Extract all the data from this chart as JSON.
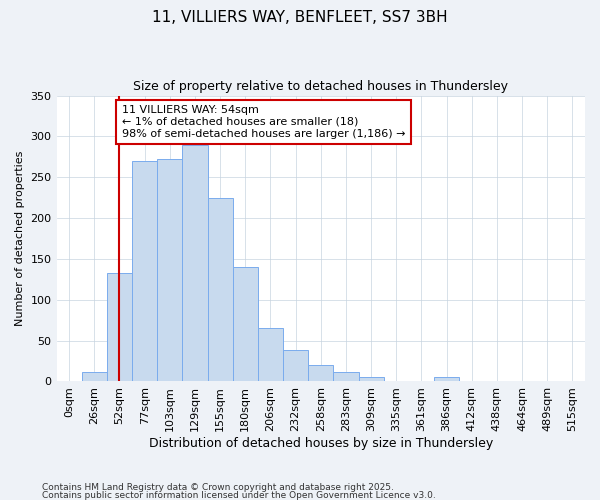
{
  "title1": "11, VILLIERS WAY, BENFLEET, SS7 3BH",
  "title2": "Size of property relative to detached houses in Thundersley",
  "xlabel": "Distribution of detached houses by size in Thundersley",
  "ylabel": "Number of detached properties",
  "bin_labels": [
    "0sqm",
    "26sqm",
    "52sqm",
    "77sqm",
    "103sqm",
    "129sqm",
    "155sqm",
    "180sqm",
    "206sqm",
    "232sqm",
    "258sqm",
    "283sqm",
    "309sqm",
    "335sqm",
    "361sqm",
    "386sqm",
    "412sqm",
    "438sqm",
    "464sqm",
    "489sqm",
    "515sqm"
  ],
  "bar_values": [
    0,
    12,
    133,
    270,
    272,
    290,
    224,
    140,
    65,
    38,
    20,
    12,
    5,
    0,
    0,
    5,
    0,
    0,
    0,
    0,
    0
  ],
  "bar_color": "#c8daee",
  "bar_edge_color": "#7aaced",
  "red_line_index": 2,
  "highlight_color": "#cc0000",
  "annotation_text": "11 VILLIERS WAY: 54sqm\n← 1% of detached houses are smaller (18)\n98% of semi-detached houses are larger (1,186) →",
  "annotation_box_color": "#ffffff",
  "annotation_box_edge": "#cc0000",
  "ylim": [
    0,
    350
  ],
  "yticks": [
    0,
    50,
    100,
    150,
    200,
    250,
    300,
    350
  ],
  "footer1": "Contains HM Land Registry data © Crown copyright and database right 2025.",
  "footer2": "Contains public sector information licensed under the Open Government Licence v3.0.",
  "bg_color": "#eef2f7",
  "plot_bg_color": "#ffffff",
  "grid_color": "#c8d4e0",
  "title_fontsize": 11,
  "subtitle_fontsize": 9,
  "xlabel_fontsize": 9,
  "ylabel_fontsize": 8,
  "tick_fontsize": 8,
  "ann_fontsize": 8
}
